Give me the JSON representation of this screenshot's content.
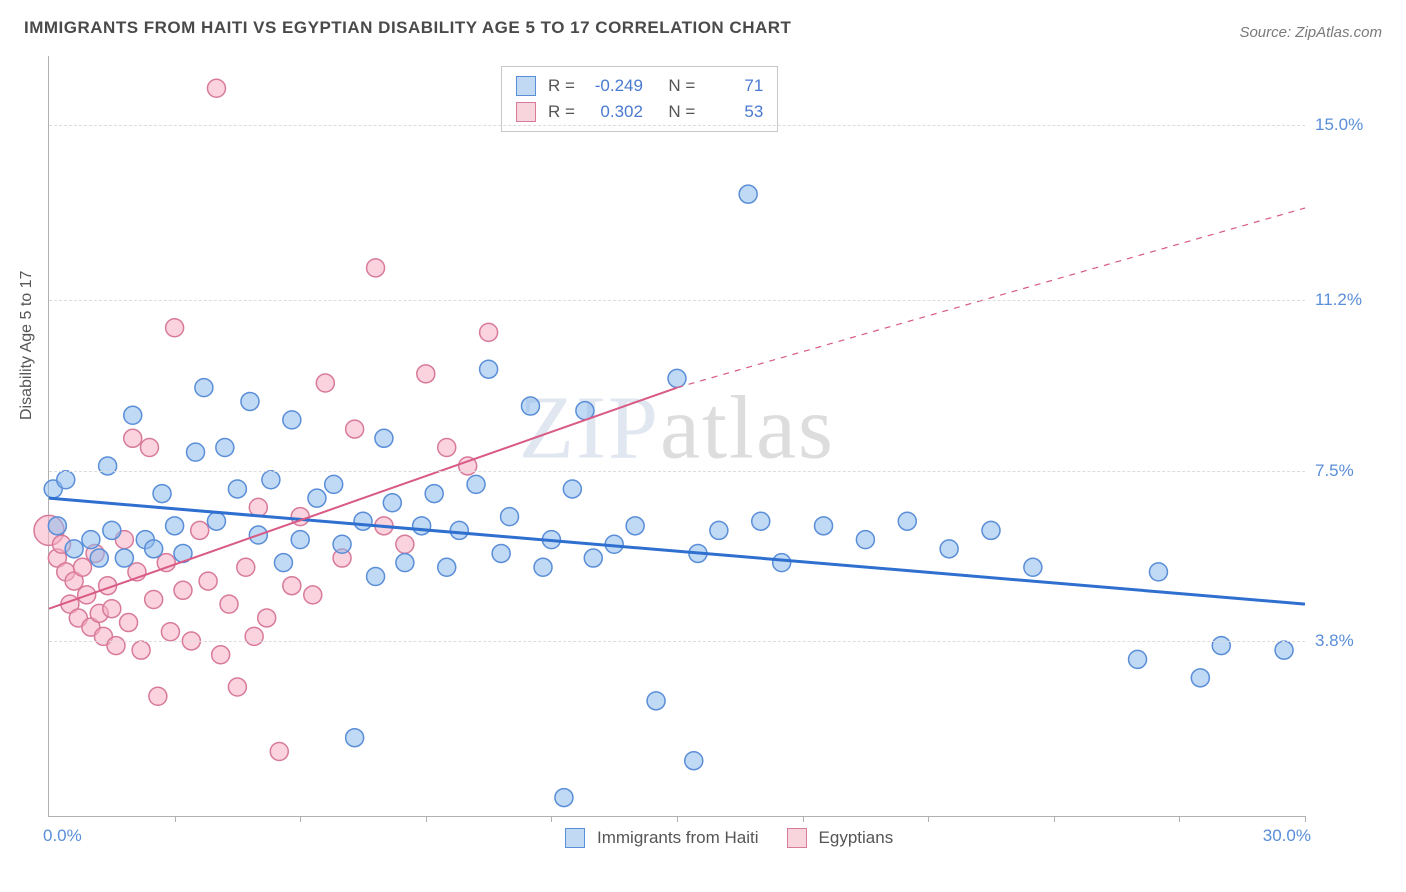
{
  "title": "IMMIGRANTS FROM HAITI VS EGYPTIAN DISABILITY AGE 5 TO 17 CORRELATION CHART",
  "source": "Source: ZipAtlas.com",
  "watermark_a": "ZIP",
  "watermark_b": "atlas",
  "ylabel": "Disability Age 5 to 17",
  "chart": {
    "type": "scatter",
    "xlim": [
      0,
      30
    ],
    "ylim": [
      0,
      16.5
    ],
    "yticks": [
      {
        "v": 3.8,
        "label": "3.8%"
      },
      {
        "v": 7.5,
        "label": "7.5%"
      },
      {
        "v": 11.2,
        "label": "11.2%"
      },
      {
        "v": 15.0,
        "label": "15.0%"
      }
    ],
    "xticks": [
      {
        "v": 0,
        "label": "0.0%"
      },
      {
        "v": 30,
        "label": "30.0%"
      }
    ],
    "xtick_marks": [
      3,
      6,
      9,
      12,
      15,
      18,
      21,
      24,
      27,
      30
    ],
    "marker_radius": 9,
    "background_color": "#ffffff",
    "grid_color": "#dcdcdc",
    "series_blue": {
      "color_fill": "rgba(140,185,235,0.55)",
      "color_stroke": "#5a8ed8",
      "label": "Immigrants from Haiti",
      "R": "-0.249",
      "N": "71",
      "trend": {
        "x1": 0,
        "y1": 6.9,
        "x2": 30,
        "y2": 4.6,
        "color": "#2e6fd0",
        "width": 3
      },
      "points": [
        [
          0.1,
          7.1
        ],
        [
          0.2,
          6.3
        ],
        [
          0.4,
          7.3
        ],
        [
          0.6,
          5.8
        ],
        [
          1.0,
          6.0
        ],
        [
          1.2,
          5.6
        ],
        [
          1.4,
          7.6
        ],
        [
          1.5,
          6.2
        ],
        [
          1.8,
          5.6
        ],
        [
          2.0,
          8.7
        ],
        [
          2.3,
          6.0
        ],
        [
          2.5,
          5.8
        ],
        [
          2.7,
          7.0
        ],
        [
          3.0,
          6.3
        ],
        [
          3.2,
          5.7
        ],
        [
          3.5,
          7.9
        ],
        [
          3.7,
          9.3
        ],
        [
          4.0,
          6.4
        ],
        [
          4.2,
          8.0
        ],
        [
          4.5,
          7.1
        ],
        [
          4.8,
          9.0
        ],
        [
          5.0,
          6.1
        ],
        [
          5.3,
          7.3
        ],
        [
          5.6,
          5.5
        ],
        [
          5.8,
          8.6
        ],
        [
          6.0,
          6.0
        ],
        [
          6.4,
          6.9
        ],
        [
          6.8,
          7.2
        ],
        [
          7.0,
          5.9
        ],
        [
          7.3,
          1.7
        ],
        [
          7.5,
          6.4
        ],
        [
          7.8,
          5.2
        ],
        [
          8.0,
          8.2
        ],
        [
          8.2,
          6.8
        ],
        [
          8.5,
          5.5
        ],
        [
          8.9,
          6.3
        ],
        [
          9.2,
          7.0
        ],
        [
          9.5,
          5.4
        ],
        [
          9.8,
          6.2
        ],
        [
          10.2,
          7.2
        ],
        [
          10.5,
          9.7
        ],
        [
          10.8,
          5.7
        ],
        [
          11.0,
          6.5
        ],
        [
          11.5,
          8.9
        ],
        [
          11.8,
          5.4
        ],
        [
          12.0,
          6.0
        ],
        [
          12.3,
          0.4
        ],
        [
          12.5,
          7.1
        ],
        [
          12.8,
          8.8
        ],
        [
          13.0,
          5.6
        ],
        [
          13.5,
          5.9
        ],
        [
          14.0,
          6.3
        ],
        [
          14.5,
          2.5
        ],
        [
          15.0,
          9.5
        ],
        [
          15.4,
          1.2
        ],
        [
          15.5,
          5.7
        ],
        [
          16.0,
          6.2
        ],
        [
          16.7,
          13.5
        ],
        [
          17.0,
          6.4
        ],
        [
          17.5,
          5.5
        ],
        [
          18.5,
          6.3
        ],
        [
          19.5,
          6.0
        ],
        [
          20.5,
          6.4
        ],
        [
          21.5,
          5.8
        ],
        [
          22.5,
          6.2
        ],
        [
          23.5,
          5.4
        ],
        [
          26.0,
          3.4
        ],
        [
          26.5,
          5.3
        ],
        [
          27.5,
          3.0
        ],
        [
          28.0,
          3.7
        ],
        [
          29.5,
          3.6
        ]
      ]
    },
    "series_pink": {
      "color_fill": "rgba(245,175,195,0.55)",
      "color_stroke": "#d87a9a",
      "label": "Egyptians",
      "R": "0.302",
      "N": "53",
      "trend_solid": {
        "x1": 0,
        "y1": 4.5,
        "x2": 15,
        "y2": 9.3,
        "color": "#d85a85",
        "width": 2
      },
      "trend_dash": {
        "x1": 15,
        "y1": 9.3,
        "x2": 30,
        "y2": 13.2,
        "color": "#d85a85",
        "width": 1.2
      },
      "points": [
        [
          0.0,
          6.2,
          15
        ],
        [
          0.2,
          5.6
        ],
        [
          0.3,
          5.9
        ],
        [
          0.4,
          5.3
        ],
        [
          0.5,
          4.6
        ],
        [
          0.6,
          5.1
        ],
        [
          0.7,
          4.3
        ],
        [
          0.8,
          5.4
        ],
        [
          0.9,
          4.8
        ],
        [
          1.0,
          4.1
        ],
        [
          1.1,
          5.7
        ],
        [
          1.2,
          4.4
        ],
        [
          1.3,
          3.9
        ],
        [
          1.4,
          5.0
        ],
        [
          1.5,
          4.5
        ],
        [
          1.6,
          3.7
        ],
        [
          1.8,
          6.0
        ],
        [
          1.9,
          4.2
        ],
        [
          2.0,
          8.2
        ],
        [
          2.1,
          5.3
        ],
        [
          2.2,
          3.6
        ],
        [
          2.4,
          8.0
        ],
        [
          2.5,
          4.7
        ],
        [
          2.6,
          2.6
        ],
        [
          2.8,
          5.5
        ],
        [
          2.9,
          4.0
        ],
        [
          3.0,
          10.6
        ],
        [
          3.2,
          4.9
        ],
        [
          3.4,
          3.8
        ],
        [
          3.6,
          6.2
        ],
        [
          3.8,
          5.1
        ],
        [
          4.0,
          15.8
        ],
        [
          4.1,
          3.5
        ],
        [
          4.3,
          4.6
        ],
        [
          4.5,
          2.8
        ],
        [
          4.7,
          5.4
        ],
        [
          4.9,
          3.9
        ],
        [
          5.0,
          6.7
        ],
        [
          5.2,
          4.3
        ],
        [
          5.5,
          1.4
        ],
        [
          5.8,
          5.0
        ],
        [
          6.0,
          6.5
        ],
        [
          6.3,
          4.8
        ],
        [
          6.6,
          9.4
        ],
        [
          7.0,
          5.6
        ],
        [
          7.3,
          8.4
        ],
        [
          7.8,
          11.9
        ],
        [
          8.0,
          6.3
        ],
        [
          8.5,
          5.9
        ],
        [
          9.0,
          9.6
        ],
        [
          9.5,
          8.0
        ],
        [
          10.0,
          7.6
        ],
        [
          10.5,
          10.5
        ]
      ]
    }
  },
  "legend_top": {
    "rows": [
      {
        "swatch": "blue",
        "r_label": "R =",
        "r_val": "-0.249",
        "n_label": "N =",
        "n_val": "71"
      },
      {
        "swatch": "pink",
        "r_label": "R =",
        "r_val": "0.302",
        "n_label": "N =",
        "n_val": "53"
      }
    ]
  },
  "legend_bottom": {
    "items": [
      {
        "swatch": "blue",
        "label": "Immigrants from Haiti"
      },
      {
        "swatch": "pink",
        "label": "Egyptians"
      }
    ]
  }
}
